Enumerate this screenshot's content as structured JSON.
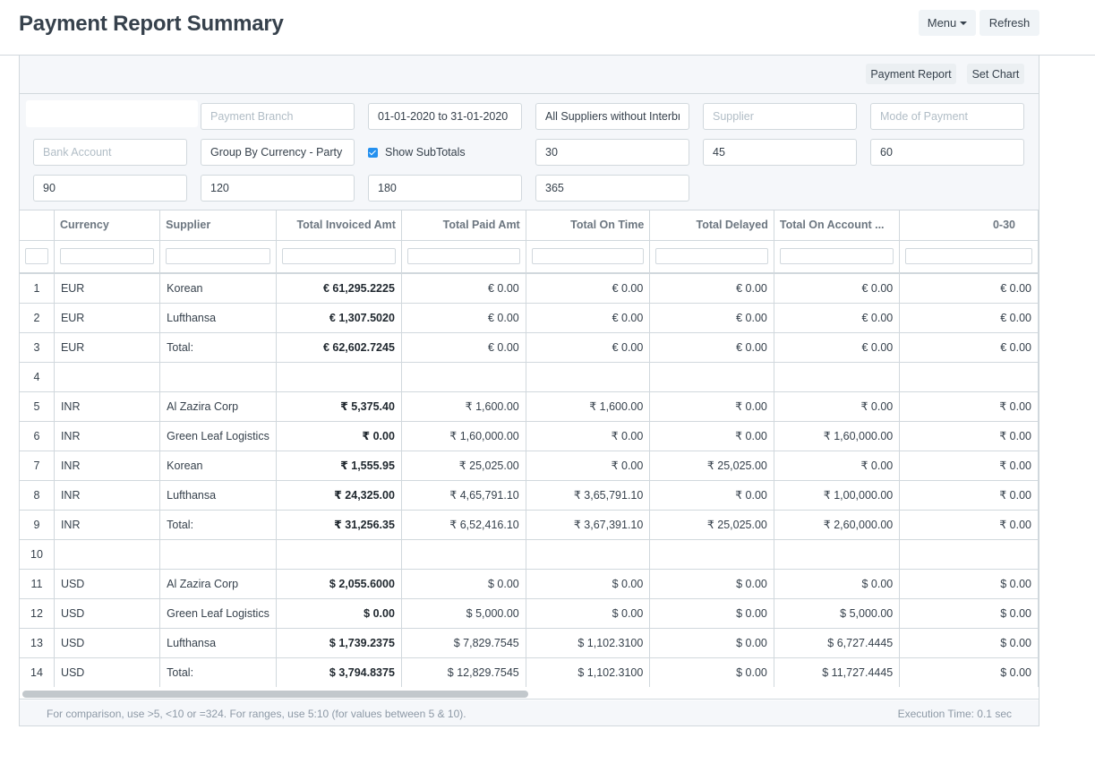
{
  "page": {
    "title": "Payment Report Summary",
    "menu_label": "Menu",
    "refresh_label": "Refresh"
  },
  "toolbar": {
    "payment_report_label": "Payment Report",
    "set_chart_label": "Set Chart"
  },
  "filters": {
    "company": "",
    "payment_branch_placeholder": "Payment Branch",
    "date_range": "01-01-2020 to 31-01-2020",
    "supplier_group": "All Suppliers without Interbranch",
    "supplier_placeholder": "Supplier",
    "mode_of_payment_placeholder": "Mode of Payment",
    "bank_account_placeholder": "Bank Account",
    "group_by": "Group By Currency - Party",
    "show_subtotals_label": "Show SubTotals",
    "range1": "30",
    "range2": "45",
    "range3": "60",
    "range4": "90",
    "range5": "120",
    "range6": "180",
    "range7": "365"
  },
  "table": {
    "headers": {
      "currency": "Currency",
      "supplier": "Supplier",
      "total_invoiced": "Total Invoiced Amt",
      "total_paid": "Total Paid Amt",
      "total_on_time": "Total On Time",
      "total_delayed": "Total Delayed",
      "total_on_account": "Total On Account ...",
      "range_0_30": "0-30"
    },
    "rows": [
      {
        "idx": "1",
        "currency": "EUR",
        "supplier": "Korean",
        "invoiced": "€ 61,295.2225",
        "paid": "€ 0.00",
        "on_time": "€ 0.00",
        "delayed": "€ 0.00",
        "on_account": "€ 0.00",
        "r030": "€ 0.00"
      },
      {
        "idx": "2",
        "currency": "EUR",
        "supplier": "Lufthansa",
        "invoiced": "€ 1,307.5020",
        "paid": "€ 0.00",
        "on_time": "€ 0.00",
        "delayed": "€ 0.00",
        "on_account": "€ 0.00",
        "r030": "€ 0.00"
      },
      {
        "idx": "3",
        "currency": "EUR",
        "supplier": "Total:",
        "invoiced": "€ 62,602.7245",
        "paid": "€ 0.00",
        "on_time": "€ 0.00",
        "delayed": "€ 0.00",
        "on_account": "€ 0.00",
        "r030": "€ 0.00"
      },
      {
        "idx": "4",
        "currency": "",
        "supplier": "",
        "invoiced": "",
        "paid": "",
        "on_time": "",
        "delayed": "",
        "on_account": "",
        "r030": ""
      },
      {
        "idx": "5",
        "currency": "INR",
        "supplier": "Al Zazira Corp",
        "invoiced": "₹ 5,375.40",
        "paid": "₹ 1,600.00",
        "on_time": "₹ 1,600.00",
        "delayed": "₹ 0.00",
        "on_account": "₹ 0.00",
        "r030": "₹ 0.00"
      },
      {
        "idx": "6",
        "currency": "INR",
        "supplier": "Green Leaf Logistics",
        "invoiced": "₹ 0.00",
        "paid": "₹ 1,60,000.00",
        "on_time": "₹ 0.00",
        "delayed": "₹ 0.00",
        "on_account": "₹ 1,60,000.00",
        "r030": "₹ 0.00"
      },
      {
        "idx": "7",
        "currency": "INR",
        "supplier": "Korean",
        "invoiced": "₹ 1,555.95",
        "paid": "₹ 25,025.00",
        "on_time": "₹ 0.00",
        "delayed": "₹ 25,025.00",
        "on_account": "₹ 0.00",
        "r030": "₹ 0.00"
      },
      {
        "idx": "8",
        "currency": "INR",
        "supplier": "Lufthansa",
        "invoiced": "₹ 24,325.00",
        "paid": "₹ 4,65,791.10",
        "on_time": "₹ 3,65,791.10",
        "delayed": "₹ 0.00",
        "on_account": "₹ 1,00,000.00",
        "r030": "₹ 0.00"
      },
      {
        "idx": "9",
        "currency": "INR",
        "supplier": "Total:",
        "invoiced": "₹ 31,256.35",
        "paid": "₹ 6,52,416.10",
        "on_time": "₹ 3,67,391.10",
        "delayed": "₹ 25,025.00",
        "on_account": "₹ 2,60,000.00",
        "r030": "₹ 0.00"
      },
      {
        "idx": "10",
        "currency": "",
        "supplier": "",
        "invoiced": "",
        "paid": "",
        "on_time": "",
        "delayed": "",
        "on_account": "",
        "r030": ""
      },
      {
        "idx": "11",
        "currency": "USD",
        "supplier": "Al Zazira Corp",
        "invoiced": "$ 2,055.6000",
        "paid": "$ 0.00",
        "on_time": "$ 0.00",
        "delayed": "$ 0.00",
        "on_account": "$ 0.00",
        "r030": "$ 0.00"
      },
      {
        "idx": "12",
        "currency": "USD",
        "supplier": "Green Leaf Logistics",
        "invoiced": "$ 0.00",
        "paid": "$ 5,000.00",
        "on_time": "$ 0.00",
        "delayed": "$ 0.00",
        "on_account": "$ 5,000.00",
        "r030": "$ 0.00"
      },
      {
        "idx": "13",
        "currency": "USD",
        "supplier": "Lufthansa",
        "invoiced": "$ 1,739.2375",
        "paid": "$ 7,829.7545",
        "on_time": "$ 1,102.3100",
        "delayed": "$ 0.00",
        "on_account": "$ 6,727.4445",
        "r030": "$ 0.00"
      },
      {
        "idx": "14",
        "currency": "USD",
        "supplier": "Total:",
        "invoiced": "$ 3,794.8375",
        "paid": "$ 12,829.7545",
        "on_time": "$ 1,102.3100",
        "delayed": "$ 0.00",
        "on_account": "$ 11,727.4445",
        "r030": "$ 0.00"
      }
    ]
  },
  "footer": {
    "help_text": "For comparison, use >5, <10 or =324. For ranges, use 5:10 (for values between 5 & 10).",
    "execution_time": "Execution Time: 0.1 sec"
  }
}
